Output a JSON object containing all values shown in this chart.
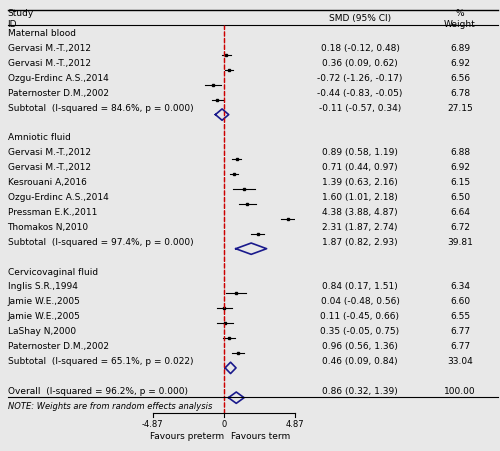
{
  "groups": [
    {
      "name": "Maternal blood",
      "studies": [
        {
          "label": "Gervasi M.-T.,2012",
          "smd": 0.18,
          "ci_lo": -0.12,
          "ci_hi": 0.48,
          "weight": 6.89,
          "is_subtotal": false
        },
        {
          "label": "Gervasi M.-T.,2012",
          "smd": 0.36,
          "ci_lo": 0.09,
          "ci_hi": 0.62,
          "weight": 6.92,
          "is_subtotal": false
        },
        {
          "label": "Ozgu-Erdinc A.S.,2014",
          "smd": -0.72,
          "ci_lo": -1.26,
          "ci_hi": -0.17,
          "weight": 6.56,
          "is_subtotal": false
        },
        {
          "label": "Paternoster D.M.,2002",
          "smd": -0.44,
          "ci_lo": -0.83,
          "ci_hi": -0.05,
          "weight": 6.78,
          "is_subtotal": false
        },
        {
          "label": "Subtotal  (I-squared = 84.6%, p = 0.000)",
          "smd": -0.11,
          "ci_lo": -0.57,
          "ci_hi": 0.34,
          "weight": 27.15,
          "is_subtotal": true
        }
      ]
    },
    {
      "name": "Amniotic fluid",
      "studies": [
        {
          "label": "Gervasi M.-T.,2012",
          "smd": 0.89,
          "ci_lo": 0.58,
          "ci_hi": 1.19,
          "weight": 6.88,
          "is_subtotal": false
        },
        {
          "label": "Gervasi M.-T.,2012",
          "smd": 0.71,
          "ci_lo": 0.44,
          "ci_hi": 0.97,
          "weight": 6.92,
          "is_subtotal": false
        },
        {
          "label": "Kesrouani A,2016",
          "smd": 1.39,
          "ci_lo": 0.63,
          "ci_hi": 2.16,
          "weight": 6.15,
          "is_subtotal": false
        },
        {
          "label": "Ozgu-Erdinc A.S.,2014",
          "smd": 1.6,
          "ci_lo": 1.01,
          "ci_hi": 2.18,
          "weight": 6.5,
          "is_subtotal": false
        },
        {
          "label": "Pressman E.K.,2011",
          "smd": 4.38,
          "ci_lo": 3.88,
          "ci_hi": 4.87,
          "weight": 6.64,
          "is_subtotal": false
        },
        {
          "label": "Thomakos N,2010",
          "smd": 2.31,
          "ci_lo": 1.87,
          "ci_hi": 2.74,
          "weight": 6.72,
          "is_subtotal": false
        },
        {
          "label": "Subtotal  (I-squared = 97.4%, p = 0.000)",
          "smd": 1.87,
          "ci_lo": 0.82,
          "ci_hi": 2.93,
          "weight": 39.81,
          "is_subtotal": true
        }
      ]
    },
    {
      "name": "Cervicovaginal fluid",
      "studies": [
        {
          "label": "Inglis S.R.,1994",
          "smd": 0.84,
          "ci_lo": 0.17,
          "ci_hi": 1.51,
          "weight": 6.34,
          "is_subtotal": false
        },
        {
          "label": "Jamie W.E.,2005",
          "smd": 0.04,
          "ci_lo": -0.48,
          "ci_hi": 0.56,
          "weight": 6.6,
          "is_subtotal": false
        },
        {
          "label": "Jamie W.E.,2005",
          "smd": 0.11,
          "ci_lo": -0.45,
          "ci_hi": 0.66,
          "weight": 6.55,
          "is_subtotal": false
        },
        {
          "label": "LaShay N,2000",
          "smd": 0.35,
          "ci_lo": -0.05,
          "ci_hi": 0.75,
          "weight": 6.77,
          "is_subtotal": false
        },
        {
          "label": "Paternoster D.M.,2002",
          "smd": 0.96,
          "ci_lo": 0.56,
          "ci_hi": 1.36,
          "weight": 6.77,
          "is_subtotal": false
        },
        {
          "label": "Subtotal  (I-squared = 65.1%, p = 0.022)",
          "smd": 0.46,
          "ci_lo": 0.09,
          "ci_hi": 0.84,
          "weight": 33.04,
          "is_subtotal": true
        }
      ]
    }
  ],
  "overall": {
    "label": "Overall  (I-squared = 96.2%, p = 0.000)",
    "smd": 0.86,
    "ci_lo": 0.32,
    "ci_hi": 1.39,
    "weight": 100.0
  },
  "note": "NOTE: Weights are from random effects analysis",
  "xlabel_left": "Favours preterm",
  "xlabel_right": "Favours term",
  "axis_min": -4.87,
  "axis_max": 4.87,
  "axis_ticks": [
    -4.87,
    0,
    4.87
  ],
  "diamond_color": "#1a1a8c",
  "bg_color": "#e8e8e8",
  "font_size": 6.5,
  "title_font_size": 6.5
}
